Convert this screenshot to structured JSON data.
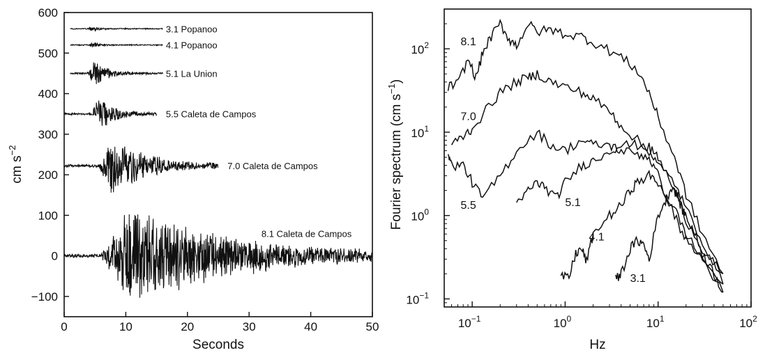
{
  "chart_data": [
    {
      "type": "line",
      "title": "",
      "xlabel": "Seconds",
      "ylabel_main": "cm s",
      "ylabel_sup": "−2",
      "xlim": [
        0,
        50
      ],
      "ylim": [
        -150,
        600
      ],
      "xticks": [
        0,
        10,
        20,
        30,
        40,
        50
      ],
      "yticks": [
        -100,
        0,
        100,
        200,
        300,
        400,
        500,
        600
      ],
      "ytick_labels": [
        "−100",
        "0",
        "100",
        "200",
        "300",
        "400",
        "500",
        "600"
      ],
      "series": [
        {
          "label": "3.1 Popanoo",
          "baseline": 560,
          "start": 1,
          "end": 16,
          "onset": 4.0,
          "peak": 12,
          "decay": 1.0,
          "label_x": 16.5
        },
        {
          "label": "4.1 Popanoo",
          "baseline": 520,
          "start": 1,
          "end": 16,
          "onset": 4.0,
          "peak": 10,
          "decay": 1.3,
          "label_x": 16.5
        },
        {
          "label": "5.1 La Union",
          "baseline": 450,
          "start": 1,
          "end": 16,
          "onset": 3.8,
          "peak": 40,
          "decay": 2.5,
          "label_x": 16.5
        },
        {
          "label": "5.5 Caleta de Campos",
          "baseline": 350,
          "start": 0,
          "end": 15,
          "onset": 4.5,
          "peak": 50,
          "decay": 3.0,
          "label_x": 16.5
        },
        {
          "label": "7.0 Caleta de Campos",
          "baseline": 222,
          "start": 0,
          "end": 25,
          "onset": 5.5,
          "peak": 75,
          "decay": 7.0,
          "label_x": 26.5
        },
        {
          "label": "8.1 Caleta de Campos",
          "baseline": 0,
          "start": 0,
          "end": 50,
          "onset": 6.0,
          "peak": 135,
          "decay": 18.0,
          "label_x": 32.0
        }
      ]
    },
    {
      "type": "line",
      "title": "",
      "xlabel": "Hz",
      "ylabel_main": "Fourier spectrum (cm s",
      "ylabel_sup": "−1",
      "ylabel_end": ")",
      "xscale": "log",
      "yscale": "log",
      "xlim": [
        0.05,
        100
      ],
      "ylim": [
        0.08,
        300
      ],
      "xtick_labels": [
        "10",
        "10",
        "10",
        "10",
        "10"
      ],
      "xtick_exps": [
        "−1",
        "0",
        "1",
        "2"
      ],
      "ytick_labels": [
        "10",
        "10",
        "10",
        "10",
        "10"
      ],
      "ytick_exps": [
        "−1",
        "0",
        "1",
        "2"
      ],
      "series": [
        {
          "label": "8.1",
          "label_x": 0.075,
          "label_y": 110,
          "points": [
            [
              0.055,
              35
            ],
            [
              0.07,
              38
            ],
            [
              0.09,
              75
            ],
            [
              0.11,
              45
            ],
            [
              0.13,
              90
            ],
            [
              0.16,
              140
            ],
            [
              0.2,
              200
            ],
            [
              0.25,
              130
            ],
            [
              0.3,
              110
            ],
            [
              0.4,
              200
            ],
            [
              0.5,
              160
            ],
            [
              0.7,
              170
            ],
            [
              1.0,
              150
            ],
            [
              1.5,
              140
            ],
            [
              2.0,
              120
            ],
            [
              3.0,
              95
            ],
            [
              4.0,
              80
            ],
            [
              6.0,
              55
            ],
            [
              8.0,
              30
            ],
            [
              10,
              15
            ],
            [
              15,
              5
            ],
            [
              20,
              1.8
            ],
            [
              30,
              0.6
            ],
            [
              50,
              0.2
            ]
          ]
        },
        {
          "label": "7.0",
          "label_x": 0.075,
          "label_y": 14,
          "points": [
            [
              0.06,
              7
            ],
            [
              0.08,
              9
            ],
            [
              0.1,
              11
            ],
            [
              0.15,
              20
            ],
            [
              0.2,
              30
            ],
            [
              0.3,
              40
            ],
            [
              0.4,
              45
            ],
            [
              0.5,
              50
            ],
            [
              0.7,
              40
            ],
            [
              1.0,
              35
            ],
            [
              1.5,
              30
            ],
            [
              2.0,
              25
            ],
            [
              3.0,
              18
            ],
            [
              4.0,
              12
            ],
            [
              6.0,
              8
            ],
            [
              8.0,
              6
            ],
            [
              10,
              4
            ],
            [
              15,
              2.5
            ],
            [
              20,
              1.2
            ],
            [
              30,
              0.5
            ],
            [
              50,
              0.15
            ]
          ]
        },
        {
          "label": "5.5",
          "label_x": 0.075,
          "label_y": 1.2,
          "points": [
            [
              0.055,
              6
            ],
            [
              0.06,
              4
            ],
            [
              0.08,
              4
            ],
            [
              0.1,
              2.5
            ],
            [
              0.13,
              1.6
            ],
            [
              0.2,
              3
            ],
            [
              0.3,
              6
            ],
            [
              0.5,
              10
            ],
            [
              0.7,
              7
            ],
            [
              1.0,
              6
            ],
            [
              1.5,
              8
            ],
            [
              2.0,
              7
            ],
            [
              3.0,
              7
            ],
            [
              4.0,
              6
            ],
            [
              6.0,
              5.5
            ],
            [
              8.0,
              5
            ],
            [
              10,
              3
            ],
            [
              15,
              1
            ],
            [
              20,
              0.5
            ],
            [
              30,
              0.3
            ],
            [
              50,
              0.12
            ]
          ]
        },
        {
          "label": "5.1",
          "label_x": 1.0,
          "label_y": 1.3,
          "points": [
            [
              0.3,
              1.3
            ],
            [
              0.4,
              2.0
            ],
            [
              0.5,
              2.5
            ],
            [
              0.6,
              2.2
            ],
            [
              0.8,
              1.6
            ],
            [
              1.0,
              2.5
            ],
            [
              1.5,
              4
            ],
            [
              2.0,
              4.5
            ],
            [
              3.0,
              6
            ],
            [
              4.0,
              7
            ],
            [
              6.0,
              7
            ],
            [
              8.0,
              6.5
            ],
            [
              10,
              5
            ],
            [
              15,
              2
            ],
            [
              20,
              0.9
            ],
            [
              30,
              0.4
            ],
            [
              50,
              0.2
            ]
          ]
        },
        {
          "label": "4.1",
          "label_x": 1.8,
          "label_y": 0.5,
          "points": [
            [
              0.9,
              0.18
            ],
            [
              1.1,
              0.18
            ],
            [
              1.3,
              0.35
            ],
            [
              1.5,
              0.4
            ],
            [
              1.7,
              0.28
            ],
            [
              2.0,
              0.6
            ],
            [
              3.0,
              1.0
            ],
            [
              4.0,
              1.3
            ],
            [
              5.0,
              2.0
            ],
            [
              6.0,
              2.5
            ],
            [
              8.0,
              3.0
            ],
            [
              10,
              2.5
            ],
            [
              15,
              1.2
            ],
            [
              20,
              0.6
            ],
            [
              30,
              0.3
            ],
            [
              50,
              0.15
            ]
          ]
        },
        {
          "label": "3.1",
          "label_x": 5.0,
          "label_y": 0.16,
          "points": [
            [
              3.5,
              0.17
            ],
            [
              4.0,
              0.2
            ],
            [
              5.0,
              0.4
            ],
            [
              6.0,
              0.5
            ],
            [
              7.0,
              0.45
            ],
            [
              8.0,
              0.3
            ],
            [
              10,
              1.0
            ],
            [
              12,
              1.5
            ],
            [
              14,
              2.2
            ],
            [
              16,
              1.8
            ],
            [
              18,
              1.2
            ],
            [
              20,
              1.0
            ],
            [
              25,
              0.6
            ],
            [
              30,
              0.35
            ],
            [
              40,
              0.2
            ],
            [
              50,
              0.12
            ]
          ]
        }
      ]
    }
  ]
}
